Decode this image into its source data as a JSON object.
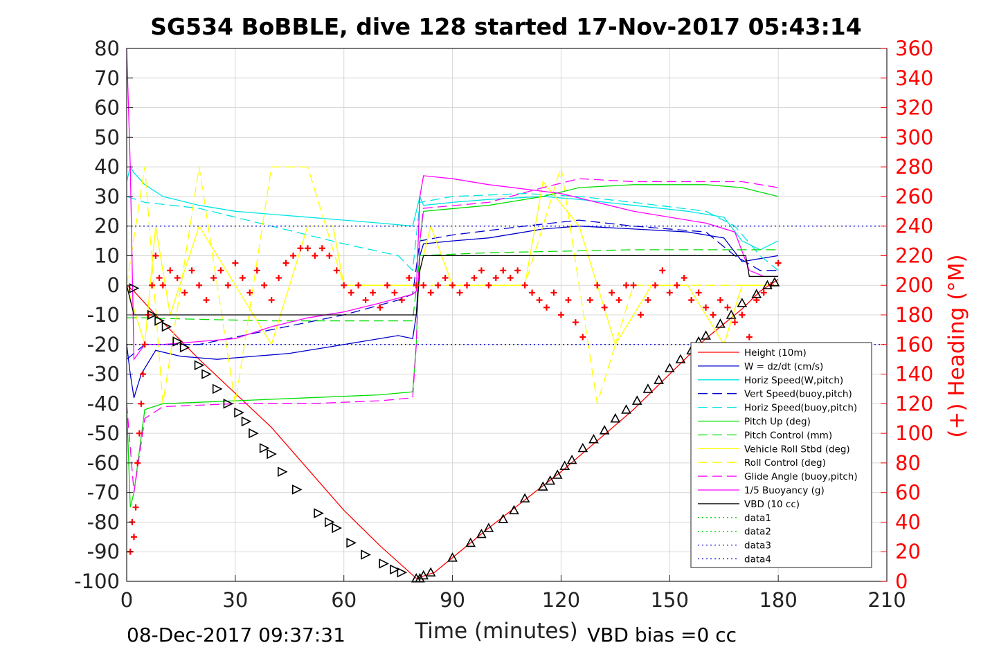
{
  "chart_data": {
    "type": "line",
    "title": "SG534 BoBBLE, dive 128 started 17-Nov-2017 05:43:14",
    "xlabel": "Time (minutes)",
    "ylabel_right": "(+) Heading (°M)",
    "xlim": [
      0,
      210
    ],
    "ylim": [
      -100,
      80
    ],
    "ylim_right": [
      0,
      360
    ],
    "xticks": [
      0,
      30,
      60,
      90,
      120,
      150,
      180,
      210
    ],
    "yticks": [
      80,
      70,
      60,
      50,
      40,
      30,
      20,
      10,
      0,
      -10,
      -20,
      -30,
      -40,
      -50,
      -60,
      -70,
      -80,
      -90,
      -100
    ],
    "yticks_right": [
      360,
      340,
      320,
      300,
      280,
      260,
      240,
      220,
      200,
      180,
      160,
      140,
      120,
      100,
      80,
      60,
      40,
      20,
      0
    ],
    "grid": true,
    "legend_position": "bottom-right",
    "footer_left": "08-Dec-2017 09:37:31",
    "footer_right": "VBD bias =0 cc",
    "series": [
      {
        "name": "Height (10m)",
        "color": "#ff0000",
        "style": "solid",
        "x": [
          0,
          2,
          5,
          8,
          20,
          40,
          60,
          70,
          80,
          85,
          100,
          120,
          140,
          160,
          170,
          175,
          180
        ],
        "y": [
          0,
          -2,
          -6,
          -10,
          -25,
          -48,
          -76,
          -88,
          -99,
          -97,
          -82,
          -63,
          -42,
          -18,
          -8,
          -2,
          2
        ]
      },
      {
        "name": "W = dz/dt (cm/s)",
        "color": "#0000cc",
        "style": "solid",
        "x": [
          0,
          1,
          2,
          4,
          8,
          15,
          25,
          35,
          45,
          55,
          65,
          75,
          79,
          80,
          81,
          82,
          90,
          100,
          115,
          125,
          140,
          155,
          165,
          170,
          175,
          180
        ],
        "y": [
          -20,
          -30,
          -38,
          -30,
          -22,
          -24,
          -25,
          -24,
          -23,
          -21,
          -19,
          -17,
          -18,
          -10,
          10,
          14,
          15,
          16,
          19,
          20,
          19,
          18,
          16,
          8,
          9,
          10
        ]
      },
      {
        "name": "Horiz Speed(W,pitch)",
        "color": "#00e5e5",
        "style": "solid",
        "x": [
          0,
          1,
          2,
          5,
          10,
          20,
          30,
          40,
          50,
          60,
          70,
          79,
          80,
          81,
          82,
          90,
          100,
          115,
          125,
          140,
          155,
          165,
          170,
          175,
          180
        ],
        "y": [
          35,
          40,
          38,
          34,
          30,
          27,
          25,
          24,
          23,
          22,
          21,
          20,
          25,
          30,
          27,
          28,
          29,
          30,
          29,
          27,
          25,
          23,
          15,
          12,
          15
        ]
      },
      {
        "name": "Vert Speed(buoy,pitch)",
        "color": "#0000cc",
        "style": "dashed",
        "x": [
          0,
          5,
          20,
          40,
          60,
          75,
          79,
          81,
          90,
          110,
          125,
          140,
          160,
          168,
          175,
          180
        ],
        "y": [
          -25,
          -20,
          -20,
          -15,
          -10,
          -5,
          -3,
          15,
          17,
          20,
          22,
          20,
          18,
          10,
          5,
          5
        ]
      },
      {
        "name": "Horiz Speed(buoy,pitch)",
        "color": "#00e5e5",
        "style": "dashed",
        "x": [
          0,
          5,
          20,
          40,
          60,
          75,
          79,
          81,
          90,
          110,
          125,
          140,
          160,
          168,
          175,
          180
        ],
        "y": [
          30,
          28,
          26,
          20,
          14,
          10,
          5,
          28,
          30,
          31,
          30,
          28,
          25,
          20,
          10,
          5
        ]
      },
      {
        "name": "Pitch Up (deg)",
        "color": "#00dd00",
        "style": "solid",
        "x": [
          0,
          1,
          2,
          5,
          10,
          30,
          50,
          70,
          79,
          80,
          81,
          82,
          100,
          115,
          125,
          140,
          160,
          170,
          180
        ],
        "y": [
          -40,
          -75,
          -70,
          -42,
          -40,
          -39,
          -38,
          -37,
          -36,
          -20,
          15,
          25,
          27,
          30,
          33,
          34,
          34,
          33,
          30
        ]
      },
      {
        "name": "Pitch Control (mm)",
        "color": "#00dd00",
        "style": "dashed",
        "x": [
          0,
          5,
          20,
          40,
          60,
          79,
          81,
          100,
          120,
          140,
          160,
          170,
          180
        ],
        "y": [
          -11,
          -11,
          -11.5,
          -12,
          -12,
          -12,
          10,
          11,
          11.5,
          12,
          12,
          12,
          12
        ]
      },
      {
        "name": "Vehicle Roll Stbd (deg)",
        "color": "#ffff00",
        "style": "solid",
        "x": [
          0,
          5,
          8,
          12,
          20,
          30,
          40,
          50,
          57,
          60,
          70,
          80,
          84,
          90,
          100,
          110,
          115,
          125,
          135,
          145,
          155,
          165,
          170,
          180
        ],
        "y": [
          0,
          -20,
          20,
          -10,
          20,
          0,
          -20,
          20,
          20,
          0,
          0,
          0,
          20,
          0,
          0,
          0,
          35,
          20,
          -20,
          0,
          0,
          -20,
          0,
          0
        ]
      },
      {
        "name": "Roll Control (deg)",
        "color": "#ffff00",
        "style": "dashed",
        "x": [
          0,
          5,
          10,
          20,
          30,
          40,
          50,
          60,
          70,
          80,
          90,
          100,
          110,
          120,
          130,
          140,
          150,
          160,
          170,
          180
        ],
        "y": [
          0,
          40,
          -40,
          40,
          -40,
          40,
          40,
          0,
          0,
          0,
          0,
          0,
          0,
          40,
          -40,
          0,
          0,
          0,
          0,
          0
        ]
      },
      {
        "name": "Glide Angle (buoy,pitch)",
        "color": "#ff00ff",
        "style": "dashed",
        "x": [
          0,
          2,
          5,
          10,
          30,
          50,
          70,
          79,
          80,
          81,
          82,
          100,
          115,
          125,
          140,
          160,
          170,
          180
        ],
        "y": [
          -40,
          -70,
          -45,
          -41,
          -40,
          -40,
          -39,
          -38,
          -20,
          15,
          26,
          28,
          33,
          36,
          35,
          35,
          35,
          33
        ]
      },
      {
        "name": "1/5 Buoyancy (g)",
        "color": "#ff00ff",
        "style": "solid",
        "x": [
          0,
          1,
          2,
          5,
          10,
          20,
          30,
          40,
          50,
          60,
          70,
          79,
          80,
          81,
          82,
          90,
          100,
          120,
          140,
          160,
          168,
          172,
          176,
          180
        ],
        "y": [
          80,
          40,
          -25,
          -20,
          -20,
          -19,
          -18,
          -14,
          -11,
          -9,
          -6,
          -3,
          -2,
          30,
          37,
          36,
          34,
          31,
          25,
          21,
          18,
          5,
          3,
          3
        ]
      },
      {
        "name": "VBD (10 cc)",
        "color": "#000000",
        "style": "solid",
        "x": [
          0,
          2,
          3,
          80,
          81,
          82,
          170,
          171,
          172,
          180
        ],
        "y": [
          0,
          -10,
          -10,
          -10,
          5,
          10,
          10,
          10,
          3,
          3
        ]
      },
      {
        "name": "data1",
        "color": "#00cc00",
        "style": "dotted",
        "x": [],
        "y": []
      },
      {
        "name": "data2",
        "color": "#00cc00",
        "style": "dotted",
        "x": [],
        "y": []
      },
      {
        "name": "data3",
        "color": "#0000cc",
        "style": "dotted",
        "x": [
          0,
          210
        ],
        "y": [
          20,
          20
        ]
      },
      {
        "name": "data4",
        "color": "#0000cc",
        "style": "dotted",
        "x": [
          0,
          210
        ],
        "y": [
          -20,
          -20
        ]
      }
    ],
    "heading_points": {
      "name": "(+) Heading",
      "color": "#ff0000",
      "marker": "plus",
      "x": [
        1,
        1.5,
        2,
        2.5,
        3,
        3.5,
        4,
        4.5,
        5,
        6,
        7,
        8,
        9,
        10,
        12,
        14,
        16,
        18,
        20,
        22,
        24,
        26,
        28,
        30,
        32,
        34,
        36,
        38,
        40,
        42,
        44,
        46,
        48,
        50,
        52,
        54,
        56,
        58,
        60,
        62,
        64,
        66,
        68,
        70,
        72,
        74,
        76,
        78,
        80,
        82,
        84,
        86,
        88,
        90,
        92,
        94,
        96,
        98,
        100,
        102,
        104,
        106,
        108,
        110,
        112,
        114,
        116,
        118,
        120,
        122,
        124,
        126,
        128,
        130,
        132,
        134,
        136,
        138,
        140,
        142,
        144,
        146,
        148,
        150,
        152,
        154,
        156,
        158,
        160,
        162,
        164,
        166,
        168,
        170,
        172,
        174,
        176,
        178,
        180
      ],
      "y": [
        20,
        40,
        30,
        50,
        80,
        100,
        120,
        140,
        160,
        180,
        200,
        220,
        205,
        200,
        210,
        205,
        195,
        210,
        200,
        190,
        205,
        210,
        200,
        215,
        205,
        195,
        210,
        200,
        190,
        205,
        215,
        220,
        225,
        225,
        220,
        225,
        220,
        210,
        200,
        195,
        200,
        190,
        195,
        185,
        200,
        195,
        190,
        205,
        200,
        200,
        195,
        200,
        205,
        200,
        195,
        200,
        205,
        210,
        200,
        205,
        210,
        205,
        210,
        200,
        195,
        190,
        185,
        195,
        180,
        190,
        175,
        165,
        190,
        200,
        185,
        195,
        190,
        200,
        200,
        180,
        190,
        200,
        210,
        195,
        200,
        205,
        190,
        195,
        185,
        180,
        190,
        185,
        175,
        180,
        165,
        190,
        195,
        200,
        215
      ]
    },
    "depth_markers": {
      "name": "depth triangles",
      "color": "#000000",
      "marker": "triangle",
      "x": [
        2,
        7,
        9,
        11,
        14,
        16,
        20,
        22,
        25,
        28,
        31,
        33,
        35,
        38,
        40,
        43,
        47,
        53,
        56,
        58,
        62,
        66,
        71,
        74,
        76,
        80,
        81,
        82,
        84,
        90,
        95,
        98,
        100,
        104,
        107,
        110,
        115,
        117,
        119,
        121,
        123,
        126,
        129,
        132,
        135,
        138,
        141,
        144,
        147,
        150,
        153,
        156,
        158,
        160,
        164,
        167,
        170,
        174,
        177,
        179
      ],
      "y": [
        -1,
        -10,
        -12,
        -14,
        -19,
        -21,
        -27,
        -30,
        -35,
        -40,
        -43,
        -46,
        -50,
        -55,
        -57,
        -63,
        -69,
        -77,
        -80,
        -82,
        -87,
        -91,
        -94,
        -96,
        -97,
        -99,
        -99,
        -98,
        -97,
        -92,
        -87,
        -84,
        -82,
        -79,
        -76,
        -72,
        -68,
        -66,
        -64,
        -61,
        -59,
        -55,
        -52,
        -49,
        -45,
        -42,
        -39,
        -35,
        -32,
        -28,
        -25,
        -22,
        -19,
        -17,
        -13,
        -10,
        -6,
        -3,
        0,
        1
      ]
    }
  }
}
